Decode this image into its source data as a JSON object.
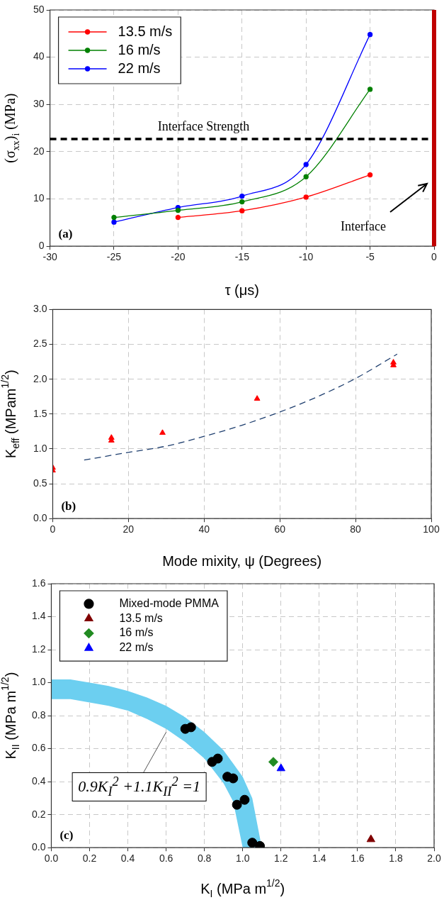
{
  "chart_data": [
    {
      "type": "line",
      "xlabel": "τ (μs)",
      "ylabel": "(σ$_{xx}$)$_{i}$ (MPa)",
      "x": [
        -25,
        -20,
        -15,
        -10,
        -5
      ],
      "series": [
        {
          "name": "13.5 m/s",
          "color": "#ff0000",
          "values": [
            null,
            6.1,
            7.5,
            10.4,
            15.1
          ]
        },
        {
          "name": "16 m/s",
          "color": "#008000",
          "values": [
            6.1,
            7.6,
            9.4,
            14.7,
            33.2
          ]
        },
        {
          "name": "22 m/s",
          "color": "#0000ff",
          "values": [
            5.1,
            8.2,
            10.6,
            17.3,
            44.8
          ]
        }
      ],
      "xlim": [
        -30,
        0
      ],
      "xticks": [
        -30,
        -25,
        -20,
        -15,
        -10,
        -5,
        0
      ],
      "ylim": [
        0,
        50
      ],
      "yticks": [
        0,
        10,
        20,
        30,
        40,
        50
      ],
      "grid": true,
      "legend": "top left",
      "marker": "circle",
      "line_style": "solid",
      "ref_lines": [
        {
          "axis": "y",
          "value": 22.7,
          "label": "Interface Strength",
          "color": "#000000",
          "line_style": "dashed"
        },
        {
          "axis": "x",
          "value": 0,
          "label": "Interface",
          "color": "#c00000",
          "line_style": "solid"
        }
      ],
      "annotations": [
        "(a)"
      ]
    },
    {
      "type": "scatter",
      "xlabel": "Mode mixity, ψ (Degrees)",
      "ylabel": "K$_{eff}$ (MPam$^{1/2}$)",
      "series": [
        {
          "color": "#ff0000",
          "x": [
            0,
            0,
            15.5,
            15.5,
            29,
            54,
            90,
            90
          ],
          "values": [
            0.73,
            0.69,
            1.16,
            1.12,
            1.23,
            1.72,
            2.24,
            2.2
          ]
        },
        {
          "type": "line",
          "color": "#1f3f6f",
          "marker": "none",
          "line_style": "dashed",
          "x": [
            8.3,
            20,
            30,
            40,
            50,
            60,
            70,
            80,
            91
          ],
          "values": [
            0.84,
            0.95,
            1.04,
            1.18,
            1.34,
            1.53,
            1.75,
            2.01,
            2.36
          ]
        }
      ],
      "marker": "triangle",
      "xlim": [
        0,
        100
      ],
      "xticks": [
        0,
        20,
        40,
        60,
        80,
        100
      ],
      "ylim": [
        0,
        3
      ],
      "yticks": [
        {
          "value": 0,
          "label": "0.0"
        },
        {
          "value": 0.5,
          "label": "0.5"
        },
        {
          "value": 1,
          "label": "1.0"
        },
        {
          "value": 1.5,
          "label": "1.5"
        },
        {
          "value": 2,
          "label": "2.0"
        },
        {
          "value": 2.5,
          "label": "2.5"
        },
        {
          "value": 3,
          "label": "3.0"
        }
      ],
      "grid": true,
      "annotations": [
        "(b)"
      ]
    },
    {
      "type": "scatter",
      "xlabel": "K$_{I}$ (MPa m$^{1/2}$)",
      "ylabel": "K$_{II}$ (MPa m$^{1/2}$)",
      "series": [
        {
          "type": "line",
          "color": "#6ccff0",
          "marker": "none",
          "x": [
            0,
            0.1,
            0.2,
            0.3,
            0.4,
            0.5,
            0.6,
            0.7,
            0.8,
            0.9,
            0.95,
            1,
            1.05,
            1.1
          ],
          "values": [
            null,
            null,
            null,
            null,
            null,
            null,
            null,
            null,
            null,
            null,
            null,
            null,
            null,
            null
          ],
          "lower": [
            0.9,
            0.9,
            0.88,
            0.86,
            0.83,
            0.78,
            0.72,
            0.64,
            0.54,
            0.39,
            0.28,
            0,
            0,
            0
          ],
          "upper": [
            1.02,
            1.02,
            1,
            0.98,
            0.95,
            0.91,
            0.86,
            0.79,
            0.7,
            0.59,
            0.51,
            0.43,
            0.3,
            0
          ]
        },
        {
          "name": "Mixed-mode PMMA",
          "color": "#000000",
          "marker": "circle",
          "x": [
            0.7,
            0.73,
            0.84,
            0.87,
            0.92,
            0.95,
            0.97,
            1.01,
            1.05,
            1.09
          ],
          "values": [
            0.72,
            0.73,
            0.52,
            0.54,
            0.43,
            0.42,
            0.26,
            0.29,
            0.03,
            0.01
          ]
        },
        {
          "name": "13.5 m/s",
          "color": "#800000",
          "marker": "triangle",
          "x": [
            1.67
          ],
          "values": [
            0.05
          ]
        },
        {
          "name": "16 m/s",
          "color": "#228b22",
          "marker": "diamond",
          "x": [
            1.16
          ],
          "values": [
            0.52
          ]
        },
        {
          "name": "22 m/s",
          "color": "#0000ff",
          "marker": "triangle",
          "x": [
            1.2
          ],
          "values": [
            0.48
          ]
        }
      ],
      "xlim": [
        0,
        2
      ],
      "xticks": [
        {
          "value": 0,
          "label": "0.0"
        },
        {
          "value": 0.2,
          "label": "0.2"
        },
        {
          "value": 0.4,
          "label": "0.4"
        },
        {
          "value": 0.6,
          "label": "0.6"
        },
        {
          "value": 0.8,
          "label": "0.8"
        },
        {
          "value": 1,
          "label": "1.0"
        },
        {
          "value": 1.2,
          "label": "1.2"
        },
        {
          "value": 1.4,
          "label": "1.4"
        },
        {
          "value": 1.6,
          "label": "1.6"
        },
        {
          "value": 1.8,
          "label": "1.8"
        },
        {
          "value": 2,
          "label": "2.0"
        }
      ],
      "ylim": [
        0,
        1.6
      ],
      "yticks": [
        {
          "value": 0,
          "label": "0.0"
        },
        {
          "value": 0.2,
          "label": "0.2"
        },
        {
          "value": 0.4,
          "label": "0.4"
        },
        {
          "value": 0.6,
          "label": "0.6"
        },
        {
          "value": 0.8,
          "label": "0.8"
        },
        {
          "value": 1,
          "label": "1.0"
        },
        {
          "value": 1.2,
          "label": "1.2"
        },
        {
          "value": 1.4,
          "label": "1.4"
        },
        {
          "value": 1.6,
          "label": "1.6"
        }
      ],
      "grid": true,
      "legend": "top left",
      "annotations": [
        "(c)",
        {
          "text": "0.9K$_{I}$$^{2}$ +1.1K$_{II}$$^{2}$ =1",
          "x": 0.6,
          "y": 0.7
        }
      ]
    }
  ]
}
